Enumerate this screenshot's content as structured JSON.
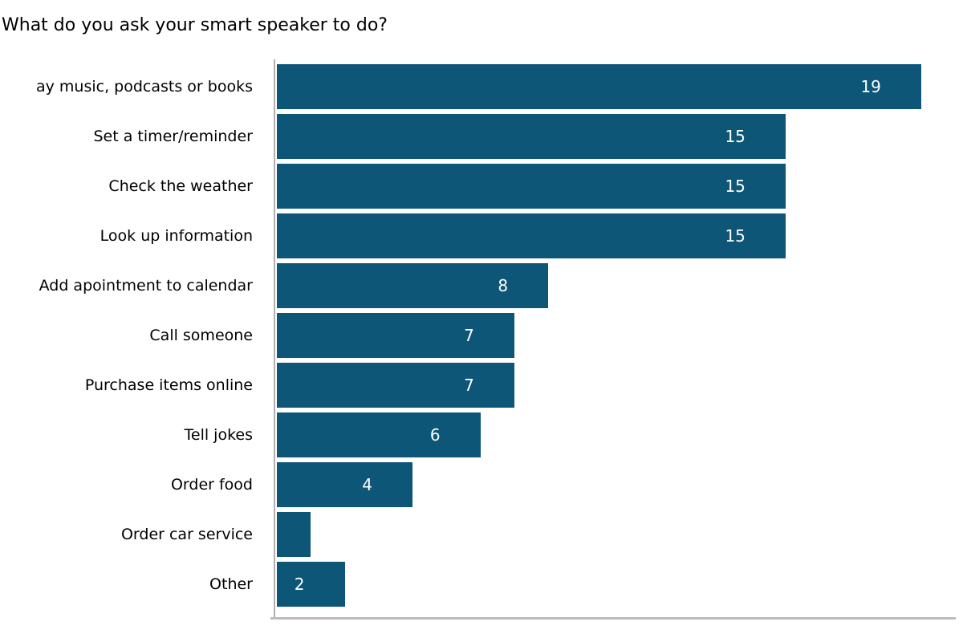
{
  "title": "What do you ask your smart speaker to do?",
  "colors": {
    "bar_fill": "#0d5678",
    "value_label_text": "#ffffff",
    "category_label_text": "#000000",
    "axis_line": "#b5b5b5",
    "background": "#ffffff"
  },
  "chart_data": {
    "type": "bar",
    "orientation": "horizontal",
    "title": "What do you ask your smart speaker to do?",
    "categories": [
      "ay music, podcasts or books",
      "Set a timer/reminder",
      "Check the weather",
      "Look up information",
      "Add apointment to calendar",
      "Call someone",
      "Purchase items online",
      "Tell jokes",
      "Order food",
      "Order car service",
      "Other"
    ],
    "values": [
      19,
      15,
      15,
      15,
      8,
      7,
      7,
      6,
      4,
      1,
      2
    ],
    "value_labels": [
      "19",
      "15",
      "15",
      "15",
      "8",
      "7",
      "7",
      "6",
      "4",
      "",
      "2"
    ],
    "xlabel": "",
    "ylabel": "",
    "xlim": [
      0,
      20
    ],
    "grid": false,
    "legend": false,
    "value_labels_position": "inside-right"
  }
}
